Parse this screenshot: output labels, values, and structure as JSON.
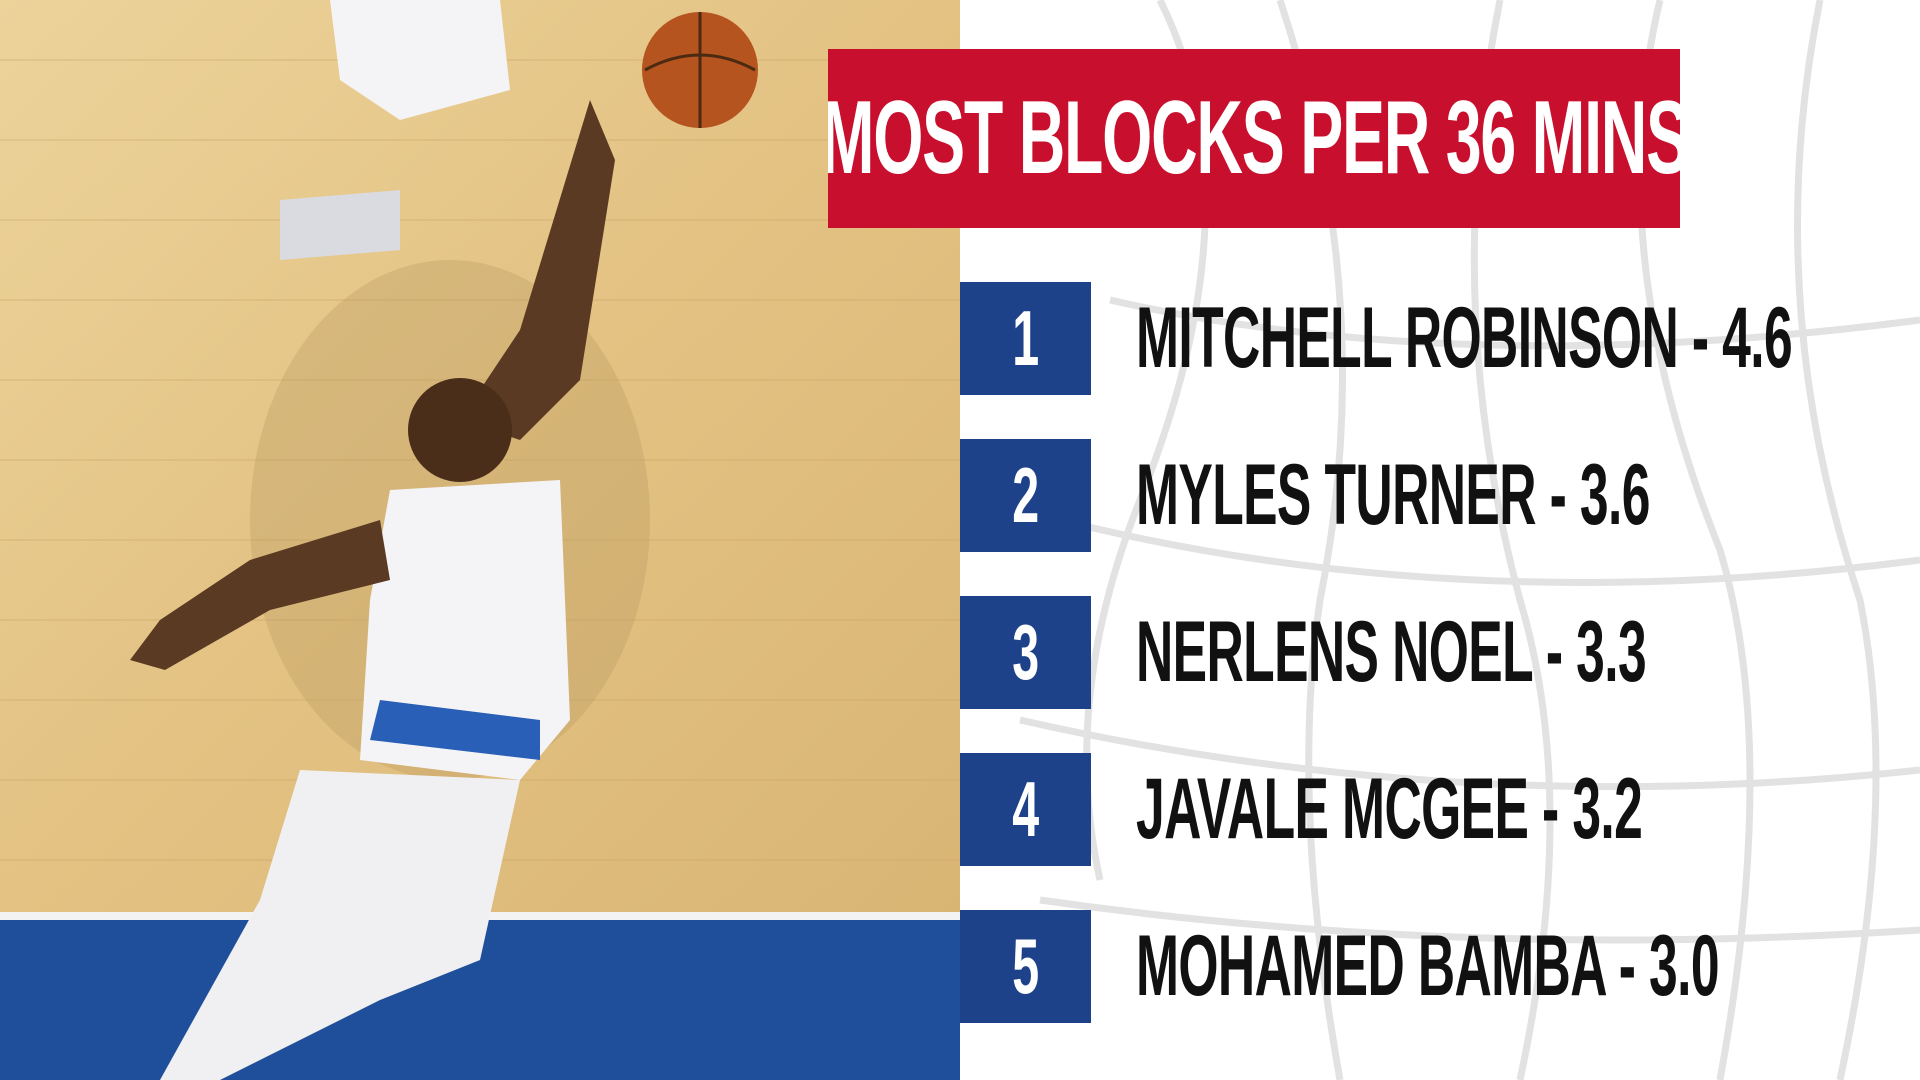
{
  "header": {
    "title": "MOST BLOCKS PER 36 MINS"
  },
  "list": {
    "rows": [
      {
        "rank": 1,
        "text": "MITCHELL ROBINSON - 4.6"
      },
      {
        "rank": 2,
        "text": "MYLES TURNER - 3.6"
      },
      {
        "rank": 3,
        "text": "NERLENS NOEL - 3.3"
      },
      {
        "rank": 4,
        "text": "JAVALE MCGEE - 3.2"
      },
      {
        "rank": 5,
        "text": "MOHAMED BAMBA - 3.0"
      }
    ]
  }
}
